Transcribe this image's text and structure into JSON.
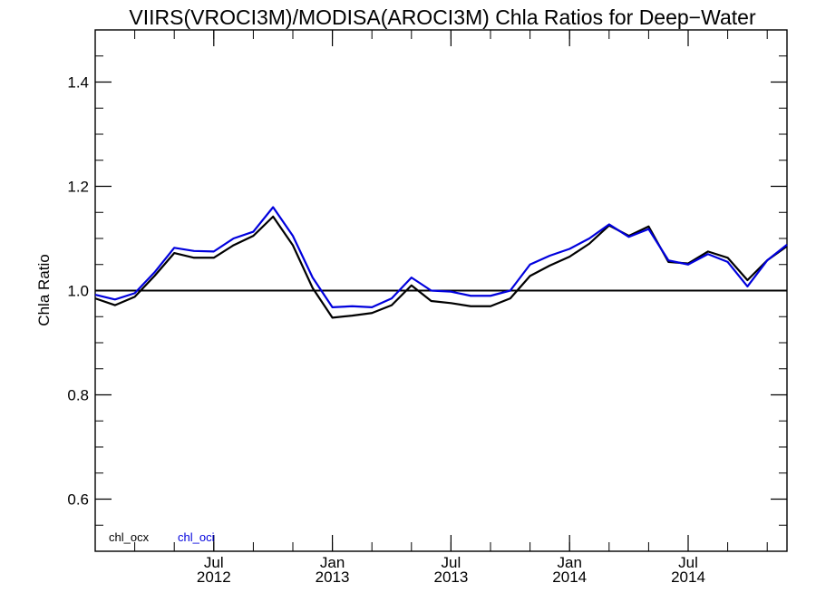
{
  "chart_data": {
    "type": "line",
    "title": "VIIRS(VROCI3M)/MODISA(AROCI3M)  Chla Ratios for Deep−Water",
    "xlabel": "",
    "ylabel": "Chla Ratio",
    "ylim": [
      0.5,
      1.5
    ],
    "y_ticks": [
      0.6,
      0.8,
      1.0,
      1.2,
      1.4
    ],
    "y_tick_labels": [
      "0.6",
      "0.8",
      "1.0",
      "1.2",
      "1.4"
    ],
    "x_range": [
      "2012-01",
      "2014-12"
    ],
    "x_major_ticks": [
      {
        "date": "2012-07",
        "month": "Jul",
        "year": "2012"
      },
      {
        "date": "2013-01",
        "month": "Jan",
        "year": "2013"
      },
      {
        "date": "2013-07",
        "month": "Jul",
        "year": "2013"
      },
      {
        "date": "2014-01",
        "month": "Jan",
        "year": "2014"
      },
      {
        "date": "2014-07",
        "month": "Jul",
        "year": "2014"
      }
    ],
    "reference_line": 1.0,
    "legend_placement": "bottom-left",
    "x": [
      "2012-01",
      "2012-02",
      "2012-03",
      "2012-04",
      "2012-05",
      "2012-06",
      "2012-07",
      "2012-08",
      "2012-09",
      "2012-10",
      "2012-11",
      "2012-12",
      "2013-01",
      "2013-02",
      "2013-03",
      "2013-04",
      "2013-05",
      "2013-06",
      "2013-07",
      "2013-08",
      "2013-09",
      "2013-10",
      "2013-11",
      "2013-12",
      "2014-01",
      "2014-02",
      "2014-03",
      "2014-04",
      "2014-05",
      "2014-06",
      "2014-07",
      "2014-08",
      "2014-09",
      "2014-10",
      "2014-11",
      "2014-12"
    ],
    "series": [
      {
        "name": "chl_ocx",
        "color": "#000000",
        "values": [
          0.985,
          0.972,
          0.988,
          1.028,
          1.072,
          1.063,
          1.063,
          1.087,
          1.105,
          1.142,
          1.087,
          1.005,
          0.948,
          0.952,
          0.957,
          0.972,
          1.01,
          0.98,
          0.976,
          0.97,
          0.97,
          0.985,
          1.028,
          1.048,
          1.065,
          1.09,
          1.125,
          1.105,
          1.123,
          1.055,
          1.052,
          1.075,
          1.063,
          1.02,
          1.058,
          1.085
        ]
      },
      {
        "name": "chl_oci",
        "color": "#0000dd",
        "values": [
          0.992,
          0.983,
          0.995,
          1.035,
          1.082,
          1.076,
          1.075,
          1.1,
          1.113,
          1.16,
          1.105,
          1.025,
          0.968,
          0.97,
          0.968,
          0.985,
          1.025,
          1.0,
          0.998,
          0.99,
          0.99,
          1.0,
          1.05,
          1.067,
          1.08,
          1.1,
          1.127,
          1.103,
          1.118,
          1.058,
          1.05,
          1.07,
          1.055,
          1.008,
          1.058,
          1.088
        ]
      }
    ]
  }
}
